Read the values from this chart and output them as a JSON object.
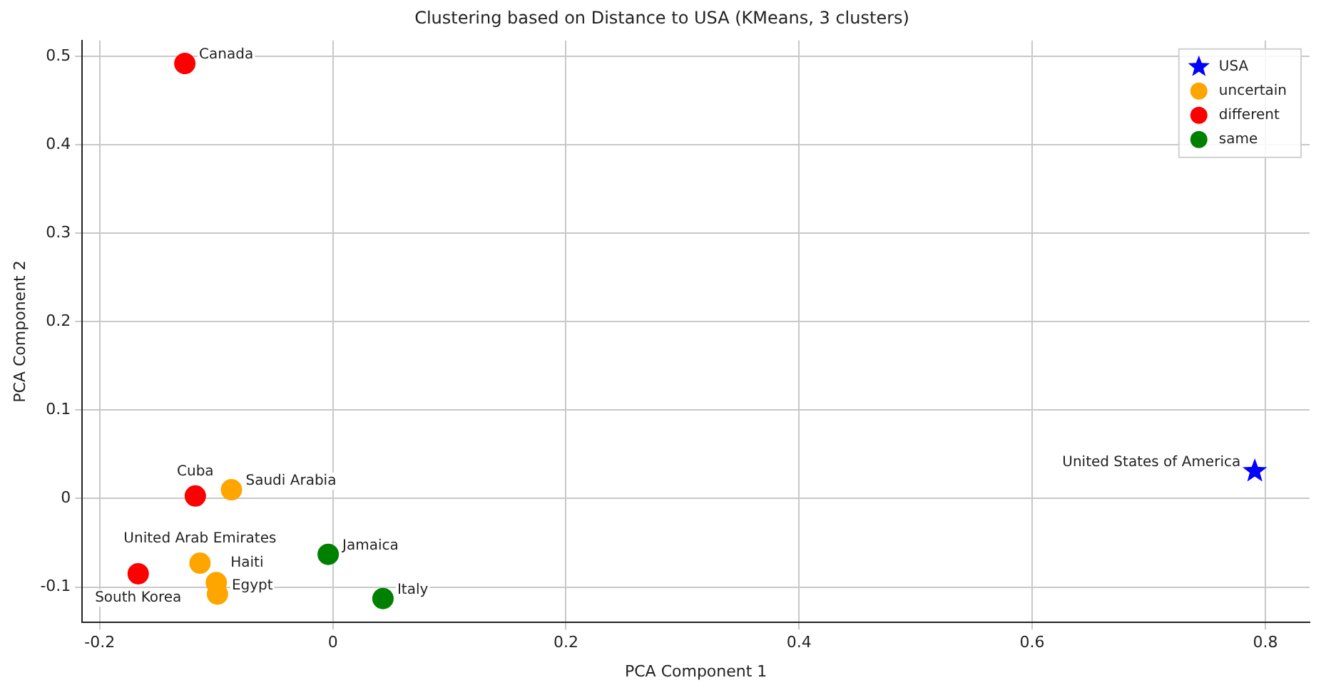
{
  "chart_data": {
    "type": "scatter",
    "title": "Clustering based on Distance to USA (KMeans, 3 clusters)",
    "xlabel": "PCA Component 1",
    "ylabel": "PCA Component 2",
    "xlim": [
      -0.215,
      0.838
    ],
    "ylim": [
      -0.14,
      0.518
    ],
    "xticks": [
      -0.2,
      0,
      0.2,
      0.4,
      0.6,
      0.8
    ],
    "yticks": [
      -0.1,
      0,
      0.1,
      0.2,
      0.3,
      0.4,
      0.5
    ],
    "grid": true,
    "legend": "top right",
    "series": [
      {
        "name": "USA",
        "color": "#0000ff",
        "marker": "star",
        "x": [
          0.791
        ],
        "values": [
          0.031
        ]
      },
      {
        "name": "uncertain",
        "color": "#ffa500",
        "marker": "circle",
        "x": [
          -0.087,
          -0.114,
          -0.1,
          -0.099
        ],
        "values": [
          0.01,
          -0.073,
          -0.095,
          -0.108
        ]
      },
      {
        "name": "different",
        "color": "#ff0000",
        "marker": "circle",
        "x": [
          -0.127,
          -0.118,
          -0.167
        ],
        "values": [
          0.492,
          0.003,
          -0.085
        ]
      },
      {
        "name": "same",
        "color": "#008000",
        "marker": "circle",
        "x": [
          -0.004,
          0.043
        ],
        "values": [
          -0.063,
          -0.113
        ]
      }
    ],
    "annotations": [
      {
        "text": "Canada",
        "x": -0.127,
        "y": 0.492
      },
      {
        "text": "Cuba",
        "x": -0.118,
        "y": 0.003
      },
      {
        "text": "Saudi Arabia",
        "x": -0.087,
        "y": 0.01
      },
      {
        "text": "United Arab Emirates",
        "x": -0.114,
        "y": -0.073
      },
      {
        "text": "South Korea",
        "x": -0.167,
        "y": -0.085
      },
      {
        "text": "Haiti",
        "x": -0.1,
        "y": -0.095
      },
      {
        "text": "Egypt",
        "x": -0.099,
        "y": -0.108
      },
      {
        "text": "Jamaica",
        "x": -0.004,
        "y": -0.063
      },
      {
        "text": "Italy",
        "x": 0.043,
        "y": -0.113
      },
      {
        "text": "United States of America",
        "x": 0.791,
        "y": 0.031
      }
    ]
  }
}
